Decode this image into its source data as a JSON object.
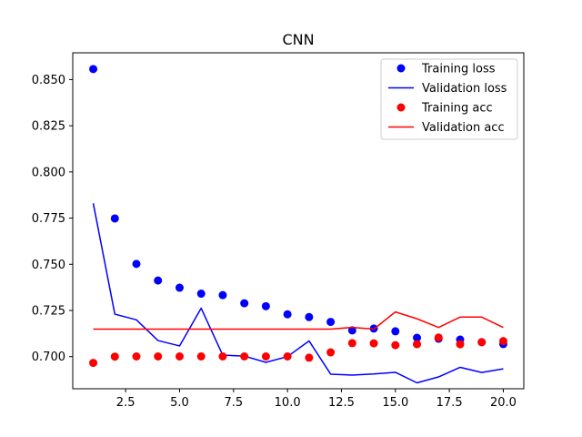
{
  "chart_data": {
    "type": "line",
    "title": "CNN",
    "xlabel": "",
    "ylabel": "",
    "xlim": [
      0.05,
      20.95
    ],
    "ylim": [
      0.6826,
      0.8645
    ],
    "x": [
      1,
      2,
      3,
      4,
      5,
      6,
      7,
      8,
      9,
      10,
      11,
      12,
      13,
      14,
      15,
      16,
      17,
      18,
      19,
      20
    ],
    "xticks": [
      2.5,
      5.0,
      7.5,
      10.0,
      12.5,
      15.0,
      17.5,
      20.0
    ],
    "xtick_labels": [
      "2.5",
      "5.0",
      "7.5",
      "10.0",
      "12.5",
      "15.0",
      "17.5",
      "20.0"
    ],
    "yticks": [
      0.7,
      0.725,
      0.75,
      0.775,
      0.8,
      0.825,
      0.85
    ],
    "ytick_labels": [
      "0.700",
      "0.725",
      "0.750",
      "0.775",
      "0.800",
      "0.825",
      "0.850"
    ],
    "grid": false,
    "legend_position": "top-right",
    "series": [
      {
        "name": "Training loss",
        "style": "points",
        "color": "#0000ff",
        "values": [
          0.8557,
          0.7748,
          0.7502,
          0.7412,
          0.7373,
          0.7341,
          0.7333,
          0.7289,
          0.7273,
          0.7229,
          0.7214,
          0.7188,
          0.7142,
          0.7152,
          0.7137,
          0.7102,
          0.7097,
          0.7092,
          0.7078,
          0.7068
        ]
      },
      {
        "name": "Validation loss",
        "style": "line",
        "color": "#0000ff",
        "values": [
          0.783,
          0.723,
          0.7199,
          0.7087,
          0.7058,
          0.7262,
          0.7008,
          0.7003,
          0.6969,
          0.7,
          0.7085,
          0.6905,
          0.69,
          0.6906,
          0.6915,
          0.6858,
          0.689,
          0.6942,
          0.6914,
          0.6934
        ]
      },
      {
        "name": "Training acc",
        "style": "points",
        "color": "#ff0000",
        "values": [
          0.6966,
          0.7,
          0.7001,
          0.7001,
          0.7001,
          0.7001,
          0.7001,
          0.7001,
          0.7001,
          0.7001,
          0.6994,
          0.7023,
          0.7073,
          0.7072,
          0.7062,
          0.7067,
          0.7103,
          0.7067,
          0.7078,
          0.7084
        ]
      },
      {
        "name": "Validation acc",
        "style": "line",
        "color": "#ff0000",
        "values": [
          0.7149,
          0.7149,
          0.7149,
          0.7149,
          0.7149,
          0.7149,
          0.7149,
          0.7149,
          0.7149,
          0.7149,
          0.7149,
          0.7149,
          0.7158,
          0.7149,
          0.7242,
          0.7205,
          0.7158,
          0.7214,
          0.7214,
          0.7158
        ]
      }
    ]
  }
}
